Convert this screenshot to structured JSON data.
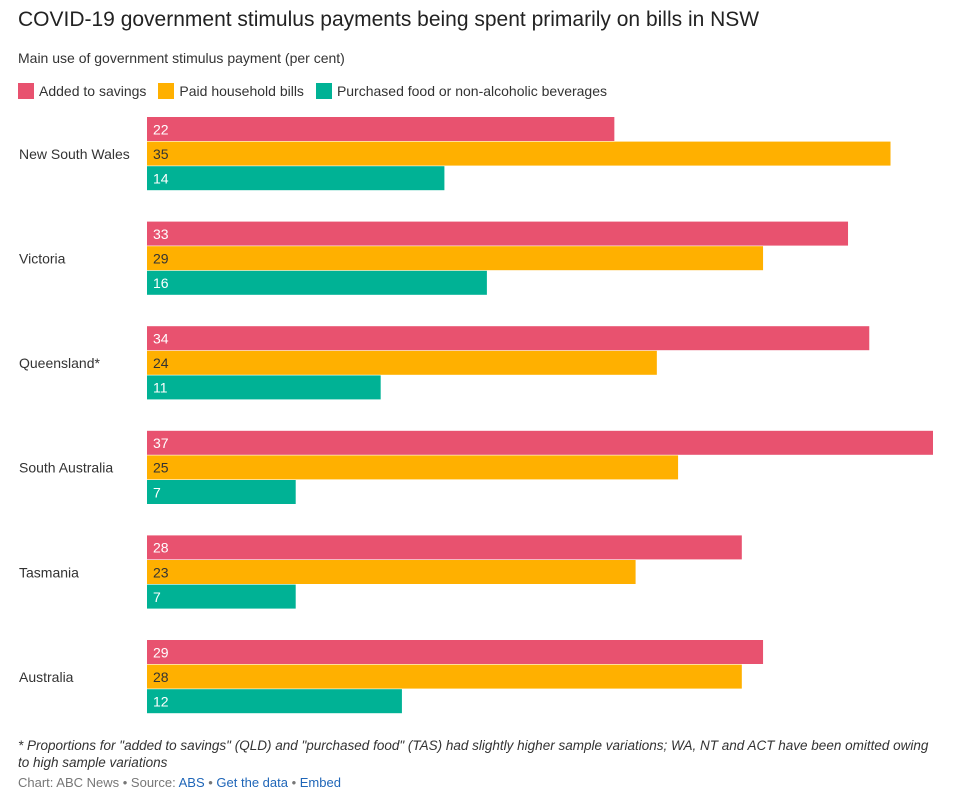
{
  "chart_data": {
    "type": "bar",
    "orientation": "horizontal",
    "title": "COVID-19 government stimulus payments being spent primarily on bills in NSW",
    "subtitle": "Main use of government stimulus payment (per cent)",
    "categories": [
      "New South Wales",
      "Victoria",
      "Queensland*",
      "South Australia",
      "Tasmania",
      "Australia"
    ],
    "series": [
      {
        "name": "Added to savings",
        "color": "#e8526f",
        "values": [
          22,
          33,
          34,
          37,
          28,
          29
        ]
      },
      {
        "name": "Paid household bills",
        "color": "#ffb000",
        "values": [
          35,
          29,
          24,
          25,
          23,
          28
        ]
      },
      {
        "name": "Purchased food or non-alcoholic beverages",
        "color": "#00b295",
        "values": [
          14,
          16,
          11,
          7,
          7,
          12
        ]
      }
    ],
    "xlim": [
      0,
      37
    ],
    "legend_position": "top",
    "grid": false
  },
  "footnote": "* Proportions for \"added to savings\" (QLD) and \"purchased food\" (TAS) had slightly higher sample variations; WA, NT and ACT have been omitted owing to high sample variations",
  "credit": {
    "prefix": "Chart: ABC News • Source: ",
    "source_link": "ABS",
    "sep1": " • ",
    "data_link": "Get the data",
    "sep2": " • ",
    "embed_link": "Embed"
  }
}
